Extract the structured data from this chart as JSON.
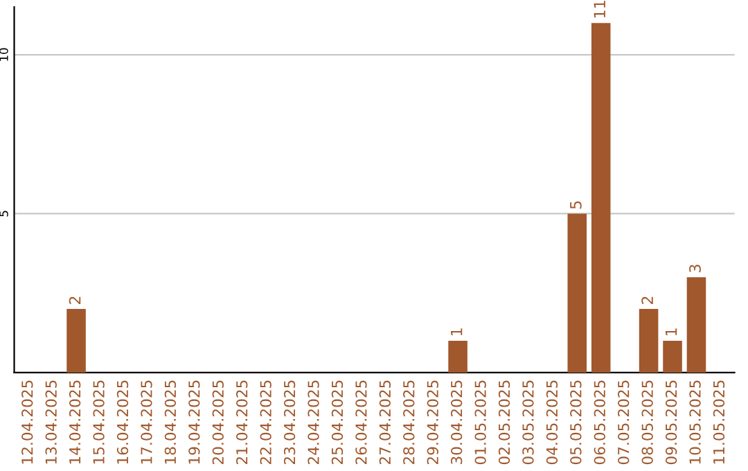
{
  "chart_data": {
    "type": "bar",
    "categories": [
      "12.04.2025",
      "13.04.2025",
      "14.04.2025",
      "15.04.2025",
      "16.04.2025",
      "17.04.2025",
      "18.04.2025",
      "19.04.2025",
      "20.04.2025",
      "21.04.2025",
      "22.04.2025",
      "23.04.2025",
      "24.04.2025",
      "25.04.2025",
      "26.04.2025",
      "27.04.2025",
      "28.04.2025",
      "29.04.2025",
      "30.04.2025",
      "01.05.2025",
      "02.05.2025",
      "03.05.2025",
      "04.05.2025",
      "05.05.2025",
      "06.05.2025",
      "07.05.2025",
      "08.05.2025",
      "09.05.2025",
      "10.05.2025",
      "11.05.2025"
    ],
    "values": [
      0,
      0,
      2,
      0,
      0,
      0,
      0,
      0,
      0,
      0,
      0,
      0,
      0,
      0,
      0,
      0,
      0,
      0,
      1,
      0,
      0,
      0,
      0,
      5,
      11,
      0,
      2,
      1,
      3,
      0
    ],
    "value_labels": [
      null,
      null,
      "2",
      null,
      null,
      null,
      null,
      null,
      null,
      null,
      null,
      null,
      null,
      null,
      null,
      null,
      null,
      null,
      "1",
      null,
      null,
      null,
      null,
      "5",
      "11",
      null,
      "2",
      "1",
      "3",
      null
    ],
    "color": "#a0582c",
    "ylim": [
      0,
      11.5
    ],
    "yticks": [
      5,
      10
    ],
    "grid": "y"
  }
}
